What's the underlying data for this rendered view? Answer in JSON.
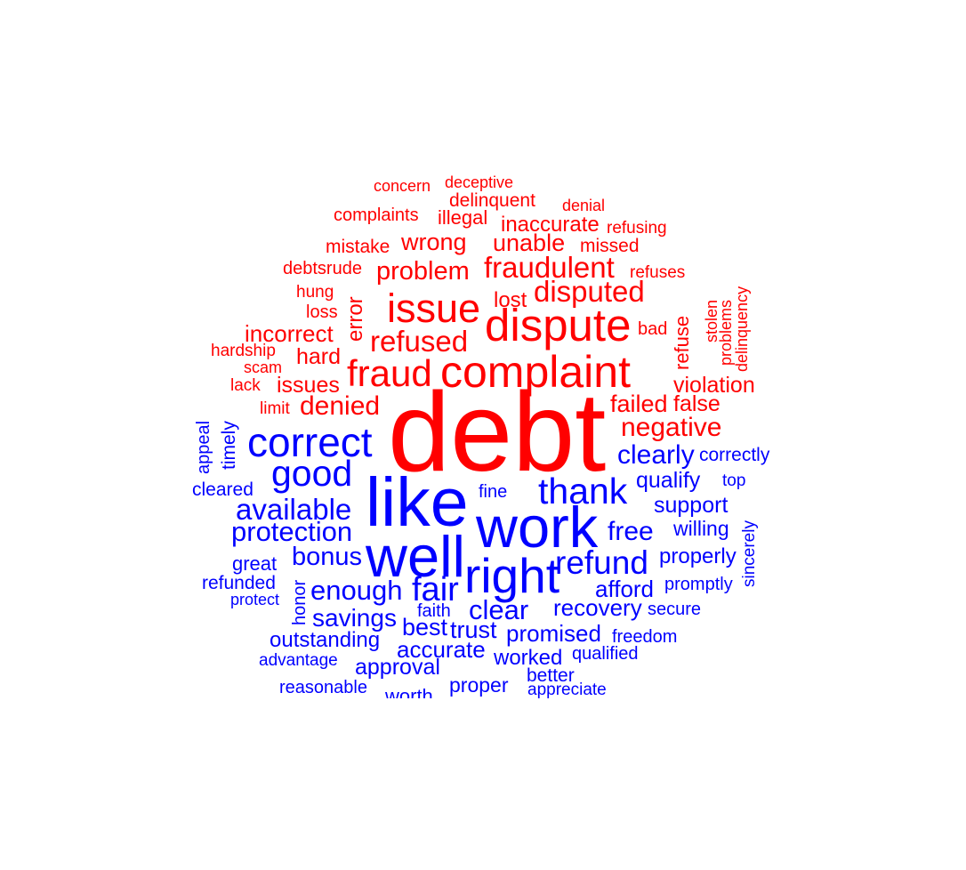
{
  "colors": {
    "negative": "#ff0000",
    "positive": "#0000ff",
    "background": "#ffffff"
  },
  "negative_words": [
    "concern",
    "deceptive",
    "delinquent",
    "denial",
    "complaints",
    "illegal",
    "inaccurate",
    "refusing",
    "mistake",
    "wrong",
    "unable",
    "missed",
    "debtsrude",
    "problem",
    "fraudulent",
    "refuses",
    "hung",
    "error",
    "disputed",
    "stolen",
    "problems",
    "delinquency",
    "loss",
    "issue",
    "lost",
    "dispute",
    "refuse",
    "incorrect",
    "bad",
    "hardship",
    "refused",
    "scam",
    "hard",
    "fraud",
    "complaint",
    "lack",
    "issues",
    "violation",
    "limit",
    "denied",
    "failed",
    "false",
    "debt",
    "negative"
  ],
  "positive_words": [
    "appeal",
    "timely",
    "correct",
    "clearly",
    "correctly",
    "good",
    "cleared",
    "like",
    "fine",
    "thank",
    "qualify",
    "top",
    "available",
    "work",
    "support",
    "protection",
    "free",
    "willing",
    "sincerely",
    "well",
    "right",
    "bonus",
    "refund",
    "properly",
    "great",
    "honor",
    "refunded",
    "fair",
    "enough",
    "afford",
    "promptly",
    "protect",
    "clear",
    "recovery",
    "secure",
    "savings",
    "faith",
    "best",
    "trust",
    "promised",
    "freedom",
    "outstanding",
    "accurate",
    "qualified",
    "advantage",
    "approval",
    "worked",
    "better",
    "reasonable",
    "proper",
    "appreciate",
    "worth"
  ]
}
